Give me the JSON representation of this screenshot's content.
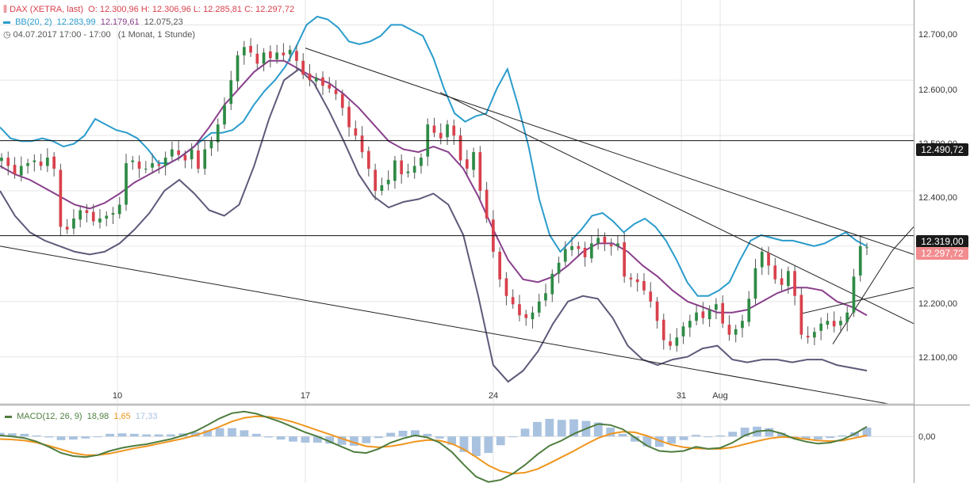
{
  "legend": {
    "title": "DAX (XETRA, last)",
    "ohlc": "O: 12.300,96  H: 12.306,96  L: 12.285,81  C: 12.297,72",
    "bb_label": "BB(20, 2)",
    "bb_upper": "12.283,99",
    "bb_middle": "12.179,61",
    "bb_lower": "12.075,23",
    "period": "04.07.2017 17:00 - 17:00",
    "range": "(1 Monat, 1 Stunde)",
    "macd_label": "MACD(12, 26, 9)",
    "macd_value": "18,98",
    "signal_value": "1,65",
    "hist_value": "17,33"
  },
  "colors": {
    "up": "#2e8b45",
    "down": "#d9414d",
    "bb_upper": "#2a9ccc",
    "bb_middle": "#8a3f8c",
    "bb_lower": "#5e5a7a",
    "macd": "#4f7d3f",
    "signal": "#f0961e",
    "histogram": "#a9c2e0"
  },
  "tags": {
    "level_1": "12.490,72",
    "level_2": "12.319,00",
    "last": "12.297,72"
  },
  "chart_data": [
    {
      "type": "candlestick",
      "title": "DAX (XETRA, last)",
      "x_tick_labels": [
        "10",
        "17",
        "24",
        "31",
        "Aug"
      ],
      "y_tick_labels": [
        "12.100,00",
        "12.200,00",
        "12.300,00",
        "12.400,00",
        "12.500,00",
        "12.600,00",
        "12.700,00"
      ],
      "ylim": [
        12015,
        12745
      ],
      "y_ticks": [
        12100,
        12200,
        12300,
        12400,
        12500,
        12600,
        12700
      ],
      "horizontal_levels": [
        12490.72,
        12319.0
      ],
      "last_price": 12297.72,
      "grid": true,
      "closes": [
        12460,
        12445,
        12430,
        12445,
        12450,
        12455,
        12445,
        12460,
        12440,
        12335,
        12330,
        12350,
        12365,
        12360,
        12345,
        12350,
        12355,
        12360,
        12375,
        12450,
        12455,
        12440,
        12440,
        12450,
        12445,
        12460,
        12475,
        12465,
        12455,
        12475,
        12440,
        12475,
        12490,
        12520,
        12555,
        12600,
        12645,
        12660,
        12650,
        12630,
        12650,
        12640,
        12650,
        12645,
        12655,
        12635,
        12610,
        12600,
        12605,
        12590,
        12585,
        12575,
        12550,
        12515,
        12500,
        12470,
        12440,
        12400,
        12410,
        12420,
        12455,
        12430,
        12435,
        12445,
        12460,
        12520,
        12505,
        12495,
        12520,
        12500,
        12455,
        12440,
        12470,
        12400,
        12350,
        12290,
        12240,
        12210,
        12195,
        12175,
        12170,
        12180,
        12200,
        12215,
        12250,
        12270,
        12295,
        12300,
        12295,
        12280,
        12305,
        12315,
        12305,
        12300,
        12305,
        12245,
        12240,
        12235,
        12220,
        12200,
        12165,
        12130,
        12120,
        12135,
        12155,
        12165,
        12180,
        12170,
        12185,
        12195,
        12160,
        12140,
        12150,
        12165,
        12205,
        12260,
        12290,
        12265,
        12240,
        12230,
        12255,
        12210,
        12140,
        12135,
        12145,
        12160,
        12165,
        12155,
        12165,
        12180,
        12245,
        12300,
        12298
      ],
      "bb_upper": [
        12515,
        12495,
        12490,
        12490,
        12495,
        12490,
        12480,
        12485,
        12500,
        12530,
        12520,
        12510,
        12505,
        12495,
        12475,
        12450,
        12450,
        12460,
        12475,
        12490,
        12505,
        12505,
        12510,
        12525,
        12555,
        12580,
        12600,
        12625,
        12660,
        12700,
        12715,
        12710,
        12695,
        12670,
        12665,
        12670,
        12680,
        12700,
        12700,
        12690,
        12680,
        12640,
        12585,
        12540,
        12525,
        12535,
        12540,
        12585,
        12620,
        12555,
        12480,
        12385,
        12320,
        12290,
        12310,
        12330,
        12355,
        12360,
        12345,
        12325,
        12340,
        12350,
        12335,
        12310,
        12275,
        12235,
        12210,
        12210,
        12220,
        12235,
        12275,
        12310,
        12320,
        12315,
        12310,
        12310,
        12305,
        12300,
        12305,
        12315,
        12325,
        12310,
        12300
      ],
      "bb_middle": [
        12445,
        12430,
        12420,
        12405,
        12390,
        12375,
        12368,
        12378,
        12395,
        12415,
        12430,
        12445,
        12460,
        12480,
        12515,
        12555,
        12585,
        12615,
        12635,
        12635,
        12620,
        12605,
        12595,
        12575,
        12550,
        12520,
        12490,
        12475,
        12470,
        12480,
        12470,
        12440,
        12390,
        12330,
        12275,
        12240,
        12235,
        12245,
        12265,
        12290,
        12305,
        12305,
        12290,
        12265,
        12245,
        12220,
        12200,
        12190,
        12180,
        12180,
        12185,
        12200,
        12215,
        12225,
        12225,
        12220,
        12200,
        12190,
        12175
      ],
      "bb_lower": [
        12400,
        12355,
        12325,
        12310,
        12300,
        12290,
        12285,
        12290,
        12305,
        12330,
        12360,
        12400,
        12420,
        12395,
        12365,
        12355,
        12375,
        12445,
        12530,
        12600,
        12620,
        12595,
        12545,
        12490,
        12430,
        12390,
        12370,
        12380,
        12385,
        12395,
        12375,
        12320,
        12210,
        12085,
        12055,
        12075,
        12110,
        12160,
        12200,
        12210,
        12205,
        12170,
        12120,
        12095,
        12085,
        12095,
        12100,
        12115,
        12120,
        12095,
        12090,
        12095,
        12095,
        12090,
        12095,
        12095,
        12085,
        12080,
        12075
      ]
    },
    {
      "type": "line",
      "title": "MACD(12, 26, 9)",
      "y_tick_labels": [
        "0,00"
      ],
      "ylim": [
        -90,
        60
      ],
      "series": [
        {
          "name": "MACD",
          "values": [
            2,
            0,
            -3,
            -10,
            -20,
            -32,
            -38,
            -40,
            -36,
            -28,
            -22,
            -18,
            -15,
            -10,
            -5,
            2,
            10,
            22,
            35,
            45,
            48,
            44,
            36,
            28,
            18,
            8,
            0,
            -10,
            -20,
            -30,
            -32,
            -24,
            -12,
            -4,
            2,
            -2,
            -12,
            -30,
            -55,
            -78,
            -88,
            -84,
            -72,
            -55,
            -35,
            -18,
            -8,
            5,
            15,
            24,
            22,
            14,
            -2,
            -18,
            -28,
            -30,
            -28,
            -20,
            -24,
            -22,
            -12,
            2,
            10,
            12,
            6,
            -4,
            -10,
            -14,
            -12,
            -6,
            5,
            19
          ]
        },
        {
          "name": "Signal",
          "values": [
            -5,
            -6,
            -8,
            -12,
            -18,
            -25,
            -32,
            -36,
            -36,
            -33,
            -28,
            -23,
            -19,
            -14,
            -9,
            -4,
            2,
            10,
            19,
            29,
            36,
            39,
            38,
            34,
            28,
            20,
            12,
            4,
            -4,
            -12,
            -19,
            -21,
            -19,
            -15,
            -10,
            -7,
            -8,
            -14,
            -25,
            -40,
            -56,
            -67,
            -72,
            -70,
            -63,
            -52,
            -40,
            -28,
            -15,
            -3,
            5,
            9,
            8,
            1,
            -8,
            -16,
            -21,
            -23,
            -24,
            -24,
            -21,
            -15,
            -9,
            -4,
            -1,
            -2,
            -5,
            -8,
            -9,
            -8,
            -3,
            2
          ]
        },
        {
          "name": "Histogram",
          "values": [
            7,
            6,
            5,
            2,
            -2,
            -7,
            -6,
            -4,
            0,
            5,
            6,
            5,
            4,
            4,
            4,
            6,
            8,
            12,
            16,
            16,
            12,
            5,
            -2,
            -6,
            -10,
            -12,
            -12,
            -14,
            -16,
            -18,
            -13,
            -3,
            7,
            11,
            12,
            5,
            -4,
            -16,
            -30,
            -38,
            -32,
            -17,
            0,
            15,
            28,
            34,
            32,
            33,
            30,
            27,
            17,
            5,
            -10,
            -19,
            -20,
            -14,
            -7,
            3,
            0,
            2,
            9,
            17,
            19,
            16,
            7,
            -2,
            -5,
            -6,
            -3,
            2,
            8,
            17
          ]
        }
      ]
    }
  ]
}
